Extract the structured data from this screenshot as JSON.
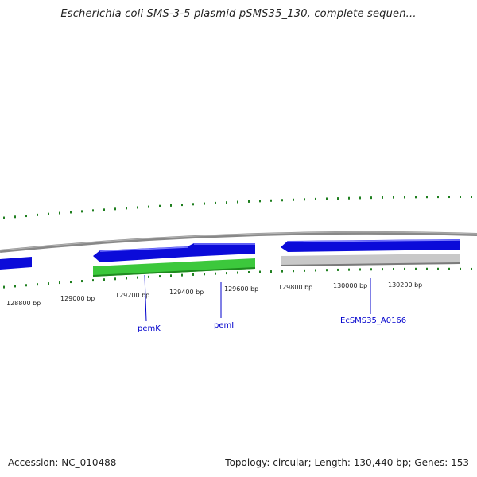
{
  "title": "Escherichia coli SMS-3-5 plasmid pSMS35_130, complete sequen...",
  "accession": "Accession: NC_010488",
  "summary": "Topology: circular; Length: 130,440 bp; Genes: 153",
  "colors": {
    "forward_gene": "#0b0bd9",
    "forward_gene_light": "#6f6fff",
    "reverse_gene": "#3cc83c",
    "reverse_gene_dark": "#1f8a1f",
    "pseudo_gene": "#c8c8c8",
    "pseudo_gene_dark": "#7a7a7a",
    "backbone": "#888888",
    "ticks": "#1f7f1f",
    "label": "#0000cc"
  },
  "ticks": [
    {
      "label": "128800 bp"
    },
    {
      "label": "129000 bp"
    },
    {
      "label": "129200 bp"
    },
    {
      "label": "129400 bp"
    },
    {
      "label": "129600 bp"
    },
    {
      "label": "129800 bp"
    },
    {
      "label": "130000 bp"
    },
    {
      "label": "130200 bp"
    }
  ],
  "genes": [
    {
      "name": "pemK",
      "strand": "reverse"
    },
    {
      "name": "pemI",
      "strand": "forward"
    },
    {
      "name": "EcSMS35_A0166",
      "strand": "forward"
    }
  ]
}
